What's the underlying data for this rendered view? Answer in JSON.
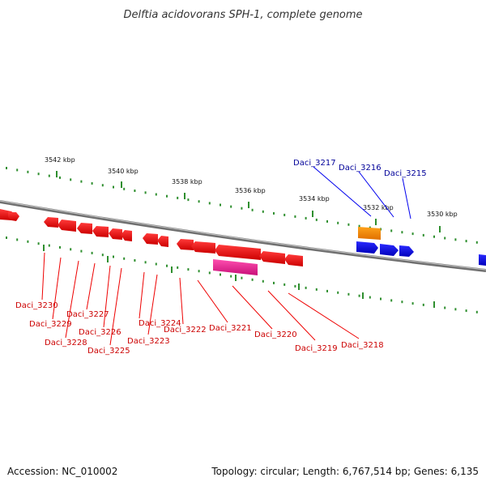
{
  "title": "Delftia acidovorans SPH-1, complete genome",
  "footer": {
    "accession": "Accession: NC_010002",
    "topology": "Topology: circular; Length: 6,767,514 bp; Genes: 6,135"
  },
  "colors": {
    "forward": "#0000ee",
    "reverse": "#ee0000",
    "highlight_pink": "#e0188a",
    "highlight_orange": "#ff8c00",
    "backbone": "#888888",
    "tick": "#2f8f2f",
    "label_red": "#cc0000",
    "label_blue": "#000099"
  },
  "scale": {
    "ticks": [
      {
        "label": "3542 kbp"
      },
      {
        "label": "3540 kbp"
      },
      {
        "label": "3538 kbp"
      },
      {
        "label": "3536 kbp"
      },
      {
        "label": "3534 kbp"
      },
      {
        "label": "3532 kbp"
      },
      {
        "label": "3530 kbp"
      }
    ]
  },
  "genes": {
    "reverse_labels": [
      "Daci_3230",
      "Daci_3229",
      "Daci_3228",
      "Daci_3227",
      "Daci_3226",
      "Daci_3225",
      "Daci_3224",
      "Daci_3223",
      "Daci_3222",
      "Daci_3221",
      "Daci_3220",
      "Daci_3219",
      "Daci_3218"
    ],
    "forward_labels": [
      "Daci_3217",
      "Daci_3216",
      "Daci_3215"
    ]
  }
}
